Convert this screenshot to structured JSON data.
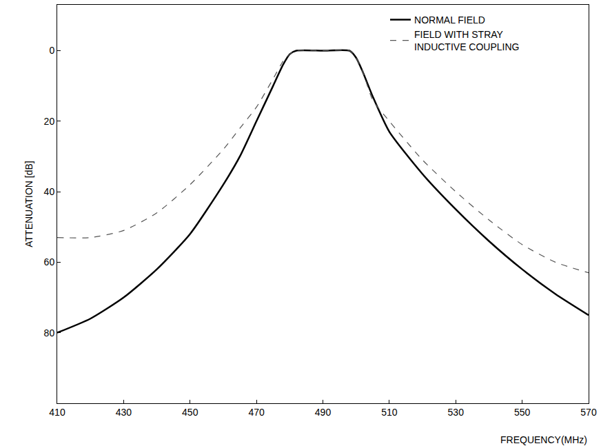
{
  "chart_data": {
    "type": "line",
    "x_label": "FREQUENCY(MHz)",
    "y_label": "ATTENUATION [dB]",
    "xlim": [
      410,
      570
    ],
    "xticks": [
      410,
      430,
      450,
      470,
      490,
      510,
      530,
      550,
      570
    ],
    "ylim": [
      100,
      -13
    ],
    "yticks": [
      0,
      20,
      40,
      60,
      80
    ],
    "grid": false,
    "legend": "top right",
    "series": [
      {
        "name": "NORMAL FIELD",
        "color": "#000000",
        "line_style": "solid",
        "x": [
          410,
          420,
          430,
          440,
          450,
          460,
          465,
          470,
          475,
          478,
          480,
          482,
          490,
          498,
          500,
          502,
          505,
          510,
          520,
          530,
          540,
          550,
          560,
          570
        ],
        "values": [
          80,
          76,
          70,
          62,
          52,
          38,
          30,
          20,
          10,
          4,
          1,
          0,
          0,
          0,
          2,
          6,
          13,
          23,
          35,
          45,
          54,
          62,
          69,
          75
        ]
      },
      {
        "name": "FIELD WITH STRAY INDUCTIVE COUPLING",
        "color": "#555555",
        "line_style": "dash",
        "x": [
          410,
          420,
          430,
          440,
          450,
          460,
          465,
          470,
          475,
          478,
          480,
          482,
          490,
          498,
          500,
          502,
          505,
          510,
          520,
          530,
          540,
          550,
          560,
          570
        ],
        "values": [
          53,
          53,
          51,
          46,
          38,
          28,
          22,
          16,
          8,
          3,
          1,
          0,
          0,
          0,
          2,
          6,
          14,
          20,
          31,
          40,
          48,
          55,
          60,
          63
        ]
      }
    ]
  }
}
